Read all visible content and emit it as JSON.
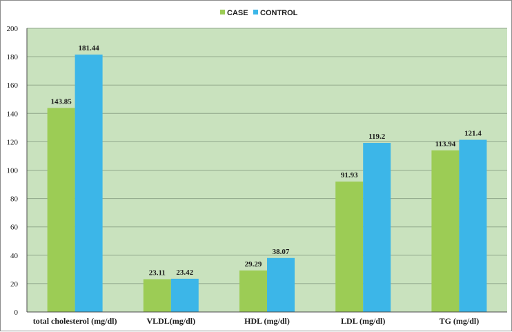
{
  "chart_data": {
    "type": "bar",
    "categories": [
      "total cholesterol (mg/dl)",
      "VLDL(mg/dl)",
      "HDL (mg/dl)",
      "LDL (mg/dl)",
      "TG (mg/dl)"
    ],
    "series": [
      {
        "name": "CASE",
        "values": [
          143.85,
          23.11,
          29.29,
          91.93,
          113.94
        ],
        "labels": [
          "143.85",
          "23.11",
          "29.29",
          "91.93",
          "113.94"
        ],
        "color": "#9ccc55"
      },
      {
        "name": "CONTROL",
        "values": [
          181.44,
          23.42,
          38.07,
          119.2,
          121.4
        ],
        "labels": [
          "181.44",
          "23.42",
          "38.07",
          "119.2",
          "121.4"
        ],
        "color": "#3cb6e8"
      }
    ],
    "ylim": [
      0,
      200
    ],
    "yticks": [
      "0",
      "20",
      "40",
      "60",
      "80",
      "100",
      "120",
      "140",
      "160",
      "180",
      "200"
    ],
    "grid": true,
    "legend_position": "top-center",
    "plot_background": "#c9e2be",
    "gridline_color": "#8fa68a"
  }
}
